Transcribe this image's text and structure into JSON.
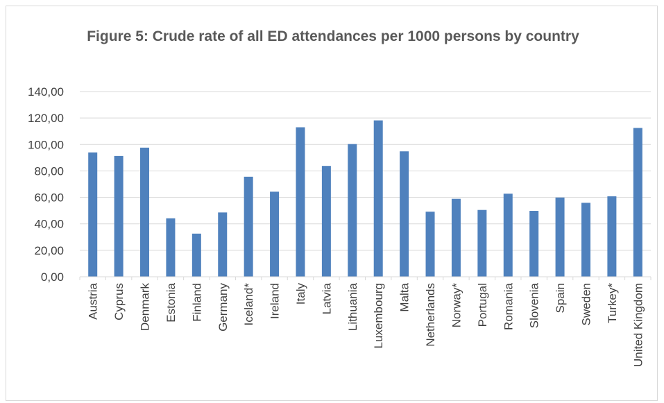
{
  "chart_data": {
    "type": "bar",
    "title": "Figure 5: Crude rate of all ED attendances per 1000 persons by country",
    "xlabel": "",
    "ylabel": "",
    "ylim": [
      0,
      140
    ],
    "yticks": [
      0,
      20,
      40,
      60,
      80,
      100,
      120,
      140
    ],
    "ytick_labels": [
      "0,00",
      "20,00",
      "40,00",
      "60,00",
      "80,00",
      "100,00",
      "120,00",
      "140,00"
    ],
    "grid": true,
    "legend": "none",
    "bar_color": "#4f81bd",
    "categories": [
      "Austria",
      "Cyprus",
      "Denmark",
      "Estonia",
      "Finland",
      "Germany",
      "Iceland*",
      "Ireland",
      "Italy",
      "Latvia",
      "Lithuania",
      "Luxembourg",
      "Malta",
      "Netherlands",
      "Norway*",
      "Portugal",
      "Romania",
      "Slovenia",
      "Spain",
      "Sweden",
      "Turkey*",
      "United Kingdom"
    ],
    "values": [
      94,
      91.3,
      97.6,
      44.2,
      32.6,
      48.6,
      75.6,
      64.3,
      113,
      83.8,
      100.3,
      118.2,
      94.8,
      49.2,
      58.9,
      50.5,
      62.8,
      49.8,
      59.9,
      55.9,
      60.8,
      112.5
    ]
  }
}
